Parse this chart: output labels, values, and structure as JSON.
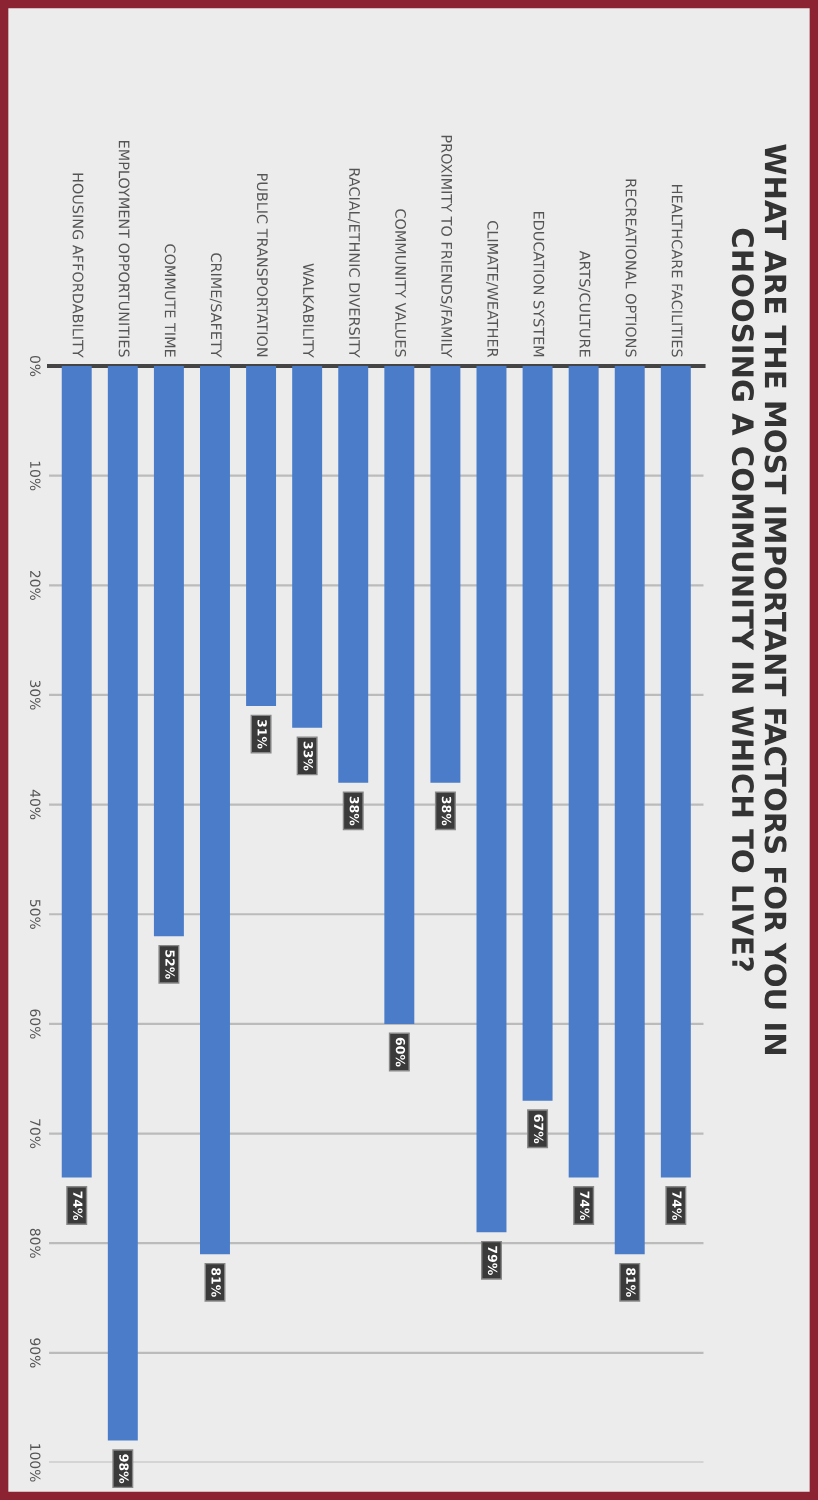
{
  "chart_data": {
    "type": "bar",
    "title": "WHAT ARE THE MOST IMPORTANT FACTORS FOR YOU IN\nCHOOSING A COMMUNITY IN WHICH TO LIVE?",
    "categories": [
      "HOUSING AFFORDABILITY",
      "EMPLOYMENT OPPORTUNITIES",
      "COMMUTE TIME",
      "CRIME/SAFETY",
      "PUBLIC TRANSPORTATION",
      "WALKABILITY",
      "RACIAL/ETHNIC DIVERSITY",
      "COMMUNITY VALUES",
      "PROXIMITY TO FRIENDS/FAMILY",
      "CLIMATE/WEATHER",
      "EDUCATION SYSTEM",
      "ARTS/CULTURE",
      "RECREATIONAL OPTIONS",
      "HEALTHCARE FACILITIES"
    ],
    "values": [
      74,
      98,
      52,
      81,
      31,
      33,
      38,
      60,
      38,
      79,
      67,
      74,
      81,
      74
    ],
    "value_labels": [
      "74%",
      "98%",
      "52%",
      "81%",
      "31%",
      "33%",
      "38%",
      "60%",
      "38%",
      "79%",
      "67%",
      "74%",
      "81%",
      "74%"
    ],
    "color": "#4a7cc9",
    "ylim": [
      100,
      0
    ],
    "yticks": [
      {
        "value": 0,
        "label": "0%"
      },
      {
        "value": 10,
        "label": "10%"
      },
      {
        "value": 20,
        "label": "20%"
      },
      {
        "value": 30,
        "label": "30%"
      },
      {
        "value": 40,
        "label": "40%"
      },
      {
        "value": 50,
        "label": "50%"
      },
      {
        "value": 60,
        "label": "60%"
      },
      {
        "value": 70,
        "label": "70%"
      },
      {
        "value": 80,
        "label": "80%"
      },
      {
        "value": 90,
        "label": "90%"
      },
      {
        "value": 100,
        "label": "100%"
      }
    ],
    "grid": "y",
    "legend": false
  }
}
